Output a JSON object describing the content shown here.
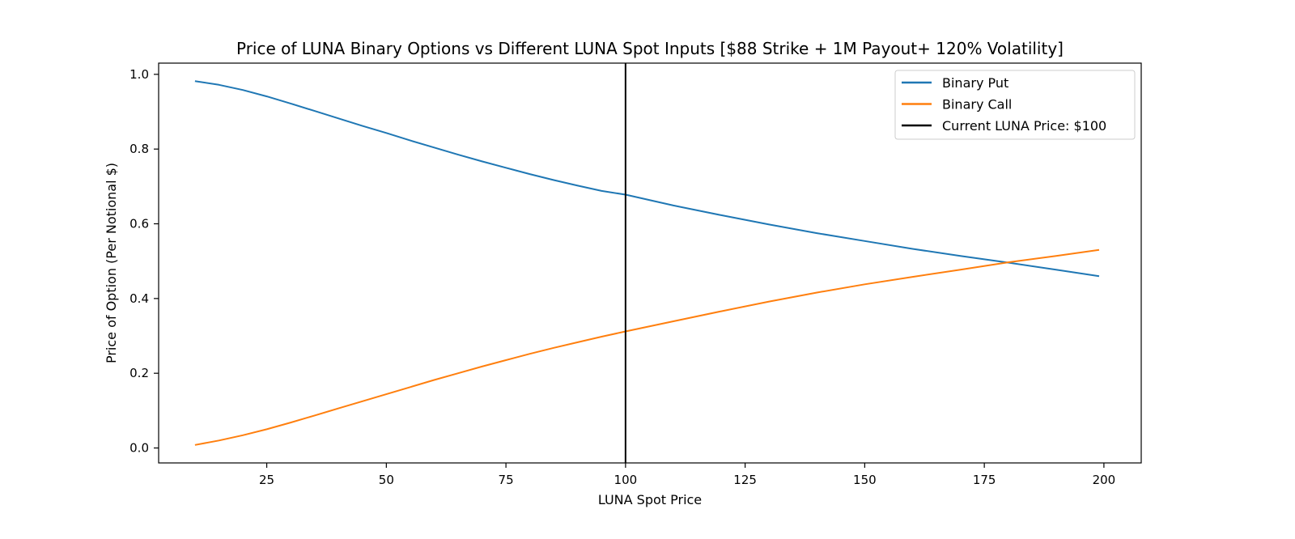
{
  "chart_data": {
    "type": "line",
    "title": "Price of LUNA Binary Options vs Different LUNA Spot Inputs [$88 Strike + 1M Payout+ 120% Volatility]",
    "xlabel": "LUNA Spot Price",
    "ylabel": "Price of Option (Per Notional $)",
    "xlim": [
      2.4,
      207.8
    ],
    "ylim": [
      -0.04,
      1.03
    ],
    "xticks": [
      25,
      50,
      75,
      100,
      125,
      150,
      175,
      200
    ],
    "yticks": [
      0.0,
      0.2,
      0.4,
      0.6,
      0.8,
      1.0
    ],
    "xtick_labels": [
      "25",
      "50",
      "75",
      "100",
      "125",
      "150",
      "175",
      "200"
    ],
    "ytick_labels": [
      "0.0",
      "0.2",
      "0.4",
      "0.6",
      "0.8",
      "1.0"
    ],
    "grid": false,
    "legend_position": "top-right",
    "series": [
      {
        "name": "Binary Put",
        "color": "#1f77b4",
        "x": [
          10,
          15,
          20,
          25,
          30,
          35,
          40,
          45,
          50,
          55,
          60,
          65,
          70,
          75,
          80,
          85,
          90,
          95,
          100,
          110,
          120,
          130,
          140,
          150,
          160,
          170,
          180,
          190,
          199
        ],
        "y": [
          0.982,
          0.972,
          0.958,
          0.941,
          0.922,
          0.902,
          0.882,
          0.862,
          0.843,
          0.823,
          0.804,
          0.785,
          0.767,
          0.75,
          0.733,
          0.717,
          0.702,
          0.688,
          0.678,
          0.649,
          0.623,
          0.598,
          0.575,
          0.554,
          0.533,
          0.514,
          0.496,
          0.477,
          0.46
        ]
      },
      {
        "name": "Binary Call",
        "color": "#ff7f0e",
        "x": [
          10,
          15,
          20,
          25,
          30,
          35,
          40,
          45,
          50,
          55,
          60,
          65,
          70,
          75,
          80,
          85,
          90,
          95,
          100,
          110,
          120,
          130,
          140,
          150,
          160,
          170,
          180,
          190,
          199
        ],
        "y": [
          0.008,
          0.02,
          0.034,
          0.05,
          0.068,
          0.087,
          0.106,
          0.125,
          0.144,
          0.163,
          0.182,
          0.2,
          0.218,
          0.235,
          0.252,
          0.268,
          0.283,
          0.298,
          0.312,
          0.339,
          0.366,
          0.392,
          0.416,
          0.438,
          0.458,
          0.477,
          0.497,
          0.514,
          0.53
        ]
      }
    ],
    "vlines": [
      {
        "name": "Current LUNA Price: $100",
        "x": 100,
        "color": "#000000"
      }
    ]
  }
}
